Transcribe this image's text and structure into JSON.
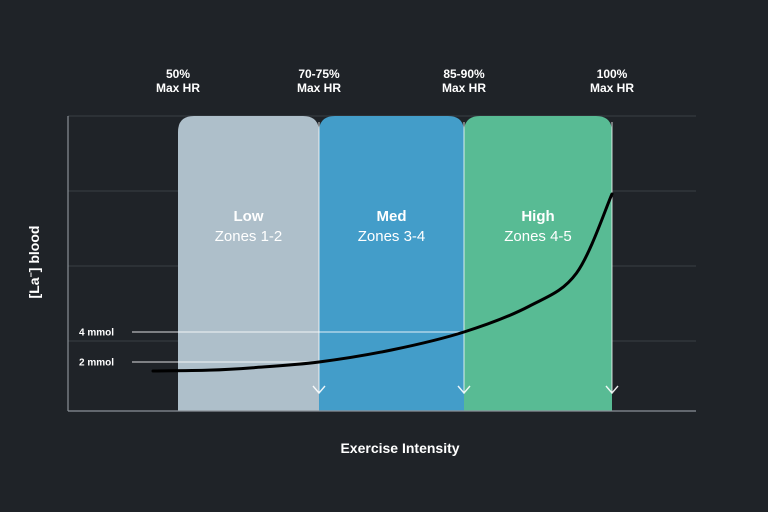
{
  "colors": {
    "background": "#1f2328",
    "grid": "#3a3f45",
    "axis": "#8a9097",
    "curve": "#000000",
    "text": "#ffffff"
  },
  "chart_data": {
    "type": "area",
    "xlabel": "Exercise Intensity",
    "ylabel_main": "[La",
    "ylabel_sup": "−",
    "ylabel_end": "] blood",
    "grid": true,
    "hr_markers": [
      {
        "line1": "50%",
        "line2": "Max HR",
        "pct": 50
      },
      {
        "line1": "70-75%",
        "line2": "Max HR",
        "pct": 72.5
      },
      {
        "line1": "85-90%",
        "line2": "Max HR",
        "pct": 87.5
      },
      {
        "line1": "100%",
        "line2": "Max HR",
        "pct": 100
      }
    ],
    "zones": [
      {
        "name": "Low",
        "sub": "Zones 1-2",
        "from": 50,
        "to": 72.5,
        "color": "#aebfca"
      },
      {
        "name": "Med",
        "sub": "Zones 3-4",
        "from": 72.5,
        "to": 87.5,
        "color": "#439dc9"
      },
      {
        "name": "High",
        "sub": "Zones 4-5",
        "from": 87.5,
        "to": 100,
        "color": "#58bb94"
      }
    ],
    "thresholds": [
      {
        "label": "2 mmol",
        "value": 2,
        "at": 72.5
      },
      {
        "label": "4 mmol",
        "value": 4,
        "at": 87.5
      }
    ],
    "curve": [
      {
        "x": 47,
        "y": 0.9
      },
      {
        "x": 55,
        "y": 1.0
      },
      {
        "x": 62,
        "y": 1.3
      },
      {
        "x": 72.5,
        "y": 2.0
      },
      {
        "x": 80,
        "y": 2.8
      },
      {
        "x": 87.5,
        "y": 4.0
      },
      {
        "x": 93,
        "y": 5.4
      },
      {
        "x": 97,
        "y": 7.2
      },
      {
        "x": 100,
        "y": 11.5
      }
    ]
  }
}
